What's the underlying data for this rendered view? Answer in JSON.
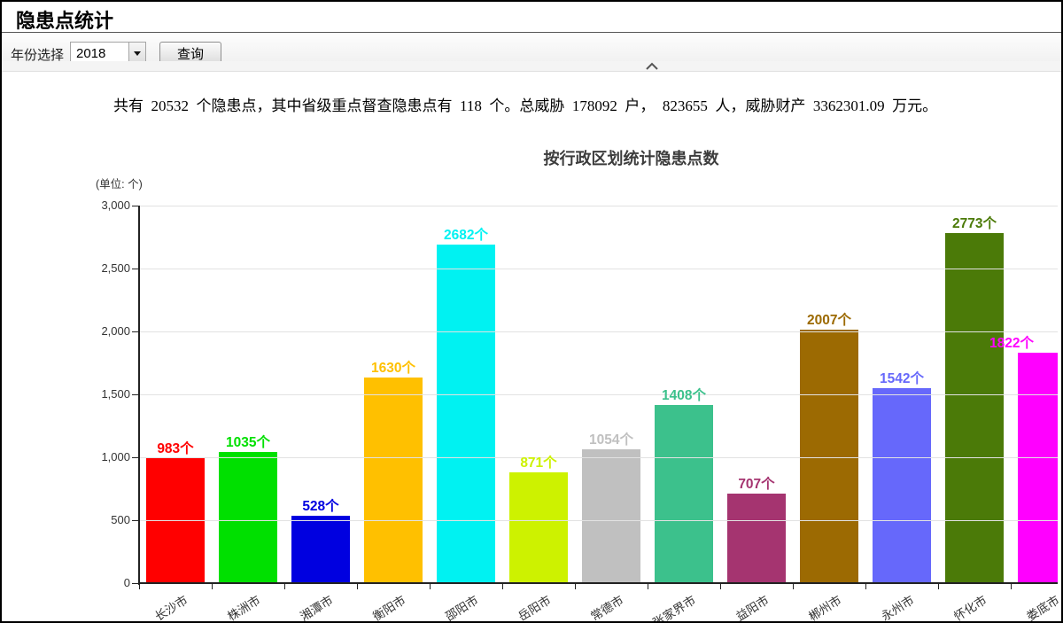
{
  "header": {
    "title": "隐患点统计"
  },
  "toolbar": {
    "year_label": "年份选择",
    "year_value": "2018",
    "query_label": "查询",
    "icons": {
      "dropdown": "caret-down",
      "collapse": "chevron-up"
    }
  },
  "summary": {
    "text": "共有  20532  个隐患点，其中省级重点督查隐患点有  118  个。总威胁  178092  户，  823655  人，威胁财产  3362301.09  万元。",
    "totals": {
      "hidden_danger_points": 20532,
      "provincial_key_supervision_points": 118,
      "threatened_households": 178092,
      "threatened_people": 823655,
      "threatened_property_wan_yuan": 3362301.09
    }
  },
  "chart_data": {
    "type": "bar",
    "title": "按行政区划统计隐患点数",
    "unit_label": "(单位: 个)",
    "xlabel": "",
    "ylabel": "",
    "categories": [
      "长沙市",
      "株洲市",
      "湘潭市",
      "衡阳市",
      "邵阳市",
      "岳阳市",
      "常德市",
      "张家界市",
      "益阳市",
      "郴州市",
      "永州市",
      "怀化市",
      "娄底市"
    ],
    "values": [
      983,
      1035,
      528,
      1630,
      2682,
      871,
      1054,
      1408,
      707,
      2007,
      1542,
      2773,
      1822
    ],
    "value_suffix": "个",
    "bar_colors": [
      "#ff0000",
      "#00e000",
      "#0000e0",
      "#ffc000",
      "#00f2f2",
      "#cdf200",
      "#c0c0c0",
      "#3cc18c",
      "#a53470",
      "#9c6a02",
      "#6668fb",
      "#4b7a08",
      "#ff00ff"
    ],
    "ylim": [
      0,
      3000
    ],
    "ytick_step": 500,
    "ytick_labels": [
      "0",
      "500",
      "1,000",
      "1,500",
      "2,000",
      "2,500",
      "3,000"
    ],
    "grid": true,
    "legend_position": "none",
    "axis_color": "#222222",
    "grid_color": "#e2e2e2"
  }
}
